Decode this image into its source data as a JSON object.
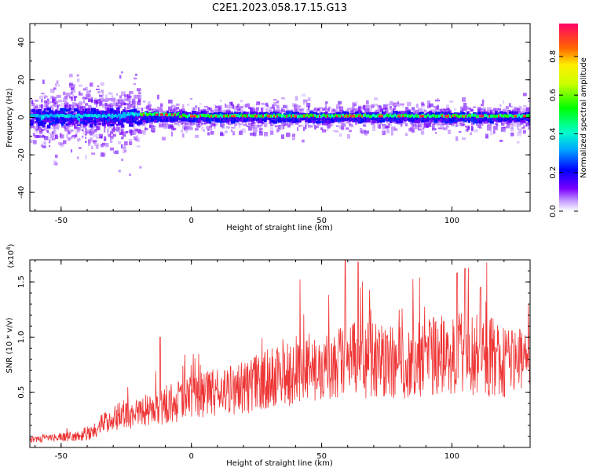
{
  "title": "C2E1.2023.058.17.15.G13",
  "chart_data": [
    {
      "type": "heatmap",
      "panel": "spectrogram",
      "xlabel": "Height of straight line (km)",
      "ylabel": "Frequency (Hz)",
      "xlim": [
        -62,
        130
      ],
      "ylim": [
        -50,
        50
      ],
      "xticks": [
        -50,
        0,
        50,
        100
      ],
      "yticks": [
        -40,
        -20,
        0,
        20,
        40
      ],
      "colorbar": {
        "label": "Normalized spectral amplitude",
        "range": [
          0,
          0.97
        ],
        "ticks": [
          "0.0",
          "0.2",
          "0.4",
          "0.6",
          "0.8"
        ],
        "tick_values": [
          0.0,
          0.2,
          0.4,
          0.6,
          0.8
        ]
      }
    },
    {
      "type": "line",
      "panel": "snr",
      "xlabel": "Height of straight line (km)",
      "ylabel": "SNR (10 * v/v)",
      "scale_label_base": "(x10",
      "scale_label_exp": "4",
      "scale_label_close": ")",
      "xlim": [
        -62,
        130
      ],
      "ylim": [
        0,
        1.7
      ],
      "xticks": [
        -50,
        0,
        50,
        100
      ],
      "yticks": [
        "0.5",
        "1.0",
        "1.5"
      ],
      "ytick_values": [
        0.5,
        1.0,
        1.5
      ],
      "color": "#ee3333",
      "trend": {
        "x": [
          -62,
          -50,
          -40,
          -30,
          -20,
          -10,
          0,
          10,
          20,
          30,
          40,
          50,
          60,
          70,
          80,
          90,
          100,
          110,
          120,
          130
        ],
        "y": [
          0.08,
          0.09,
          0.11,
          0.28,
          0.32,
          0.38,
          0.45,
          0.5,
          0.54,
          0.62,
          0.7,
          0.72,
          0.78,
          0.8,
          0.76,
          0.8,
          0.85,
          0.84,
          0.8,
          0.75
        ]
      },
      "peaks": [
        {
          "x": 59,
          "y": 1.7
        },
        {
          "x": 64,
          "y": 1.68
        },
        {
          "x": 105,
          "y": 1.62
        },
        {
          "x": 102,
          "y": 1.58
        },
        {
          "x": 111,
          "y": 1.45
        },
        {
          "x": -12,
          "y": 1.0
        }
      ]
    }
  ]
}
